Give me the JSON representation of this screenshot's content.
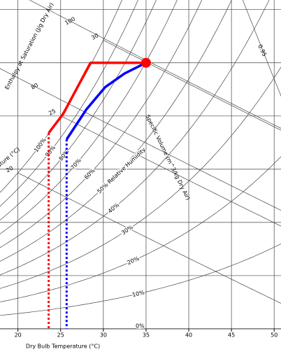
{
  "chart_data": {
    "type": "psychrometric",
    "x_label": "Dry Bulb Temperature (°C)",
    "enthalpy_label": "Enthalpy at Saturation (J/g Dry Air)",
    "wet_bulb_label": "ature (°C)",
    "volume_label": "Specific Volume (m^3/kg Dry Air)",
    "xlim": [
      17.9,
      50.8
    ],
    "xticks": [
      20,
      25,
      30,
      35,
      40,
      45,
      50
    ],
    "ylim": [
      0,
      30.9
    ],
    "ygrid": [
      5,
      10,
      15,
      20,
      25,
      30
    ],
    "rh_lines": [
      {
        "value": 100,
        "label": "100%"
      },
      {
        "value": 90,
        "label": "90%"
      },
      {
        "value": 80,
        "label": "80%"
      },
      {
        "value": 70,
        "label": "70%"
      },
      {
        "value": 60,
        "label": "60%"
      },
      {
        "value": 50,
        "label": "50% Relative Humidity"
      },
      {
        "value": 40,
        "label": "40%"
      },
      {
        "value": 30,
        "label": "30%"
      },
      {
        "value": 20,
        "label": "20%"
      },
      {
        "value": 10,
        "label": "10%"
      },
      {
        "value": 0,
        "label": "0%"
      }
    ],
    "enthalpy_lines": [
      80,
      100
    ],
    "wet_bulb_lines": [
      20,
      25,
      30
    ],
    "volume_lines": [
      0.95
    ],
    "series": [
      {
        "color": "#ff0000",
        "style": "solid",
        "x": [
          35,
          28.5,
          25.3,
          23.6
        ],
        "y": [
          25,
          25,
          20.2,
          18.4
        ]
      },
      {
        "color": "#ff0000",
        "style": "dotted",
        "x": [
          23.6,
          23.6
        ],
        "y": [
          18.4,
          0
        ]
      },
      {
        "color": "#0000ff",
        "style": "solid",
        "x": [
          35,
          32.5,
          30.2,
          28,
          25.7
        ],
        "y": [
          25,
          24,
          22.7,
          20.6,
          17.8
        ]
      },
      {
        "color": "#0000ff",
        "style": "dotted",
        "x": [
          25.7,
          25.7
        ],
        "y": [
          17.8,
          0
        ]
      }
    ],
    "marker": {
      "x": 35,
      "y": 25,
      "color": "#ff0000"
    }
  }
}
